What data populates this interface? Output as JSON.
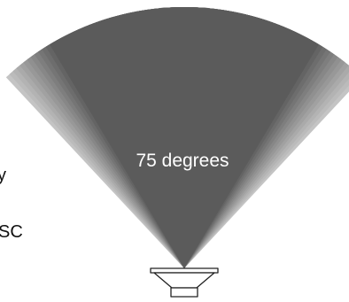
{
  "figure": {
    "angle_label": "75 degrees",
    "left_text_fragments": [
      "y",
      "SC"
    ]
  },
  "colors": {
    "beam_core": "#5b5b5b",
    "beam_edge": "#c4c4c4",
    "speaker_stroke": "#222222",
    "background": "#ffffff"
  },
  "icons": {
    "speaker": "loudspeaker-icon"
  }
}
